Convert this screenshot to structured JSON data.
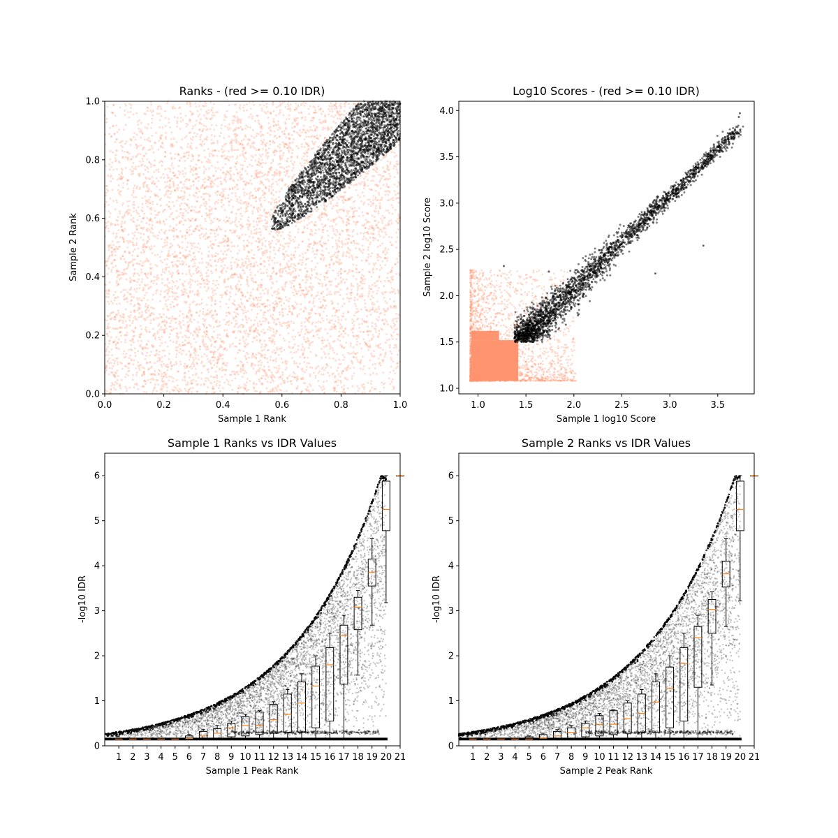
{
  "colors": {
    "thresholded": "#ff9471",
    "passing": "#000000",
    "median": "#ff7f0e",
    "frame": "#000000"
  },
  "chart_data": [
    {
      "type": "scatter",
      "title": "Ranks - (red >= 0.10 IDR)",
      "xlabel": "Sample 1 Rank",
      "ylabel": "Sample 2 Rank",
      "xlim": [
        0,
        1
      ],
      "ylim": [
        0,
        1
      ],
      "xticks": [
        0.0,
        0.2,
        0.4,
        0.6,
        0.8,
        1.0
      ],
      "yticks": [
        0.0,
        0.2,
        0.4,
        0.6,
        0.8,
        1.0
      ],
      "tick_labels_x": [
        "0.0",
        "0.2",
        "0.4",
        "0.6",
        "0.8",
        "1.0"
      ],
      "tick_labels_y": [
        "0.0",
        "0.2",
        "0.4",
        "0.6",
        "0.8",
        "1.0"
      ],
      "series": [
        {
          "color": "#ff9471",
          "distribution": "uniform over unit square, sparser toward upper-left and lower-right corners",
          "alpha": 0.25
        },
        {
          "color": "#000000",
          "distribution": "ellipse along diagonal from (0.56, 0.56) to (1.0, 1.0), upper-right corner dense",
          "alpha": 0.35
        }
      ]
    },
    {
      "type": "scatter",
      "title": "Log10 Scores - (red >= 0.10 IDR)",
      "xlabel": "Sample 1 log10 Score",
      "ylabel": "Sample 2 log10 Score",
      "xlim": [
        0.8,
        3.88
      ],
      "ylim": [
        0.94,
        4.1
      ],
      "xticks": [
        1.0,
        1.5,
        2.0,
        2.5,
        3.0,
        3.5
      ],
      "yticks": [
        1.0,
        1.5,
        2.0,
        2.5,
        3.0,
        3.5,
        4.0
      ],
      "tick_labels_x": [
        "1.0",
        "1.5",
        "2.0",
        "2.5",
        "3.0",
        "3.5"
      ],
      "tick_labels_y": [
        "1.0",
        "1.5",
        "2.0",
        "2.5",
        "3.0",
        "3.5",
        "4.0"
      ],
      "series": [
        {
          "color": "#ff9471",
          "distribution": "dense block x 0.92-1.5, y 1.08-1.6, fading out to x 2.0, y 2.3"
        },
        {
          "color": "#000000",
          "distribution": "band along diagonal from (1.4, 1.5) to (3.75, 3.97)"
        }
      ]
    },
    {
      "type": "box",
      "title": "Sample 1 Ranks vs IDR Values",
      "xlabel": "Sample 1 Peak Rank",
      "ylabel": "-log10 IDR",
      "xlim": [
        0,
        21
      ],
      "ylim": [
        0,
        6.5
      ],
      "categories": [
        "1",
        "2",
        "3",
        "4",
        "5",
        "6",
        "7",
        "8",
        "9",
        "10",
        "11",
        "12",
        "13",
        "14",
        "15",
        "16",
        "17",
        "18",
        "19",
        "20",
        "21"
      ],
      "yticks": [
        0,
        1,
        2,
        3,
        4,
        5,
        6
      ],
      "tick_labels_y": [
        "0",
        "1",
        "2",
        "3",
        "4",
        "5",
        "6"
      ],
      "boxes": [
        {
          "q1": 0.15,
          "median": 0.15,
          "q3": 0.15,
          "low": 0.15,
          "high": 0.15
        },
        {
          "q1": 0.15,
          "median": 0.15,
          "q3": 0.15,
          "low": 0.15,
          "high": 0.15
        },
        {
          "q1": 0.15,
          "median": 0.15,
          "q3": 0.15,
          "low": 0.15,
          "high": 0.15
        },
        {
          "q1": 0.15,
          "median": 0.15,
          "q3": 0.15,
          "low": 0.15,
          "high": 0.15
        },
        {
          "q1": 0.15,
          "median": 0.15,
          "q3": 0.16,
          "low": 0.15,
          "high": 0.16
        },
        {
          "q1": 0.15,
          "median": 0.16,
          "q3": 0.22,
          "low": 0.15,
          "high": 0.25
        },
        {
          "q1": 0.15,
          "median": 0.22,
          "q3": 0.32,
          "low": 0.15,
          "high": 0.36
        },
        {
          "q1": 0.16,
          "median": 0.28,
          "q3": 0.38,
          "low": 0.15,
          "high": 0.45
        },
        {
          "q1": 0.2,
          "median": 0.4,
          "q3": 0.5,
          "low": 0.15,
          "high": 0.55
        },
        {
          "q1": 0.22,
          "median": 0.45,
          "q3": 0.65,
          "low": 0.15,
          "high": 0.7
        },
        {
          "q1": 0.25,
          "median": 0.45,
          "q3": 0.75,
          "low": 0.15,
          "high": 0.78
        },
        {
          "q1": 0.28,
          "median": 0.58,
          "q3": 0.92,
          "low": 0.15,
          "high": 0.98
        },
        {
          "q1": 0.3,
          "median": 0.7,
          "q3": 1.15,
          "low": 0.15,
          "high": 1.25
        },
        {
          "q1": 0.3,
          "median": 0.95,
          "q3": 1.42,
          "low": 0.15,
          "high": 1.6
        },
        {
          "q1": 0.4,
          "median": 1.33,
          "q3": 1.77,
          "low": 0.15,
          "high": 2.0
        },
        {
          "q1": 0.55,
          "median": 1.8,
          "q3": 2.18,
          "low": 0.15,
          "high": 2.5
        },
        {
          "q1": 1.37,
          "median": 2.45,
          "q3": 2.68,
          "low": 0.15,
          "high": 2.9
        },
        {
          "q1": 2.58,
          "median": 3.08,
          "q3": 3.3,
          "low": 1.57,
          "high": 3.45
        },
        {
          "q1": 3.55,
          "median": 3.85,
          "q3": 4.15,
          "low": 2.68,
          "high": 4.6
        },
        {
          "q1": 4.78,
          "median": 5.25,
          "q3": 5.88,
          "low": 3.18,
          "high": 6.0
        },
        {
          "q1": 6.0,
          "median": 6.0,
          "q3": 6.0,
          "low": 6.0,
          "high": 6.0
        }
      ]
    },
    {
      "type": "box",
      "title": "Sample 2 Ranks vs IDR Values",
      "xlabel": "Sample 2 Peak Rank",
      "ylabel": "-log10 IDR",
      "xlim": [
        0,
        21
      ],
      "ylim": [
        0,
        6.5
      ],
      "categories": [
        "1",
        "2",
        "3",
        "4",
        "5",
        "6",
        "7",
        "8",
        "9",
        "10",
        "11",
        "12",
        "13",
        "14",
        "15",
        "16",
        "17",
        "18",
        "19",
        "20",
        "21"
      ],
      "yticks": [
        0,
        1,
        2,
        3,
        4,
        5,
        6
      ],
      "tick_labels_y": [
        "0",
        "1",
        "2",
        "3",
        "4",
        "5",
        "6"
      ],
      "boxes": [
        {
          "q1": 0.15,
          "median": 0.15,
          "q3": 0.15,
          "low": 0.15,
          "high": 0.15
        },
        {
          "q1": 0.15,
          "median": 0.15,
          "q3": 0.15,
          "low": 0.15,
          "high": 0.15
        },
        {
          "q1": 0.15,
          "median": 0.15,
          "q3": 0.15,
          "low": 0.15,
          "high": 0.15
        },
        {
          "q1": 0.15,
          "median": 0.15,
          "q3": 0.15,
          "low": 0.15,
          "high": 0.15
        },
        {
          "q1": 0.15,
          "median": 0.15,
          "q3": 0.2,
          "low": 0.15,
          "high": 0.22
        },
        {
          "q1": 0.15,
          "median": 0.17,
          "q3": 0.25,
          "low": 0.15,
          "high": 0.28
        },
        {
          "q1": 0.15,
          "median": 0.22,
          "q3": 0.32,
          "low": 0.15,
          "high": 0.36
        },
        {
          "q1": 0.16,
          "median": 0.3,
          "q3": 0.4,
          "low": 0.15,
          "high": 0.45
        },
        {
          "q1": 0.2,
          "median": 0.4,
          "q3": 0.5,
          "low": 0.15,
          "high": 0.55
        },
        {
          "q1": 0.22,
          "median": 0.47,
          "q3": 0.67,
          "low": 0.15,
          "high": 0.72
        },
        {
          "q1": 0.25,
          "median": 0.48,
          "q3": 0.78,
          "low": 0.15,
          "high": 0.8
        },
        {
          "q1": 0.28,
          "median": 0.6,
          "q3": 0.95,
          "low": 0.15,
          "high": 1.0
        },
        {
          "q1": 0.3,
          "median": 0.72,
          "q3": 1.15,
          "low": 0.15,
          "high": 1.25
        },
        {
          "q1": 0.3,
          "median": 0.97,
          "q3": 1.42,
          "low": 0.15,
          "high": 1.6
        },
        {
          "q1": 0.4,
          "median": 1.27,
          "q3": 1.75,
          "low": 0.15,
          "high": 2.0
        },
        {
          "q1": 0.55,
          "median": 1.83,
          "q3": 2.18,
          "low": 0.15,
          "high": 2.5
        },
        {
          "q1": 1.3,
          "median": 2.4,
          "q3": 2.65,
          "low": 0.15,
          "high": 2.9
        },
        {
          "q1": 2.5,
          "median": 3.03,
          "q3": 3.25,
          "low": 1.35,
          "high": 3.42
        },
        {
          "q1": 3.53,
          "median": 3.82,
          "q3": 4.1,
          "low": 2.65,
          "high": 4.6
        },
        {
          "q1": 4.78,
          "median": 5.25,
          "q3": 5.88,
          "low": 3.22,
          "high": 6.0
        },
        {
          "q1": 6.0,
          "median": 6.0,
          "q3": 6.0,
          "low": 6.0,
          "high": 6.0
        }
      ]
    }
  ]
}
